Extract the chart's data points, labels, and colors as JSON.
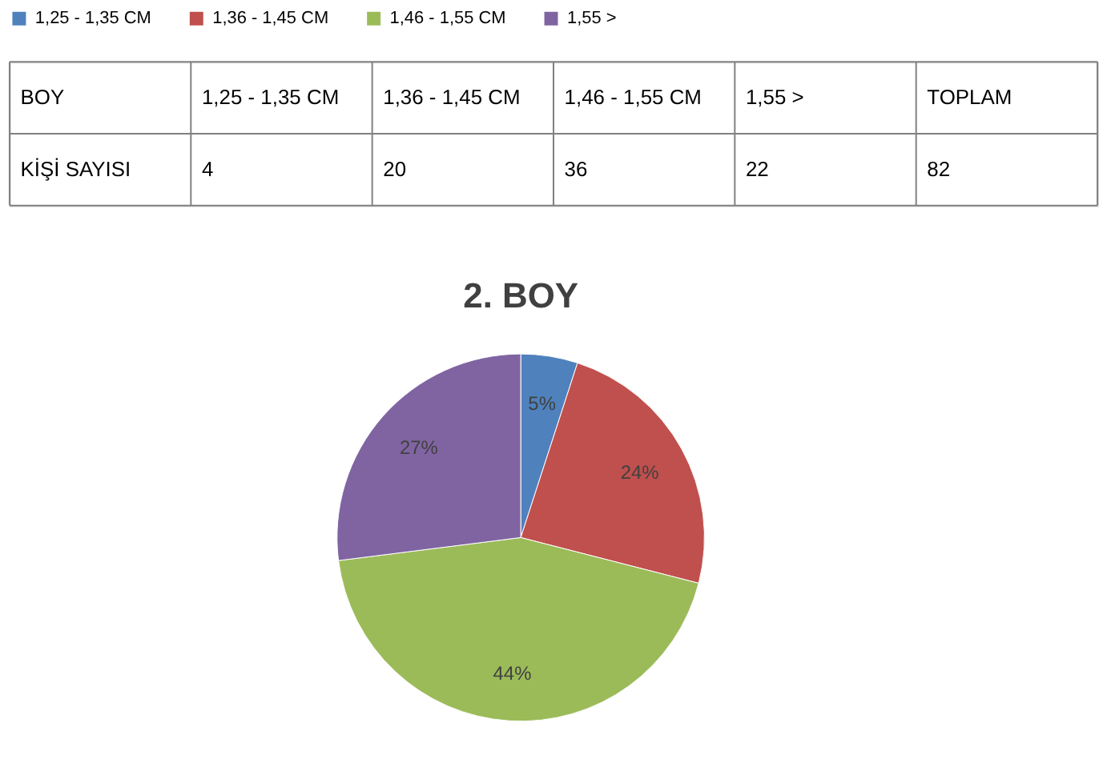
{
  "chart_data": [
    {
      "type": "other",
      "annotations": [
        "BOY",
        "1,25 - 1,35 CM",
        "1,36 - 1,45 CM",
        "1,46 - 1,55 CM",
        "1,55 >",
        "TOPLAM",
        "KİŞİ SAYISI",
        "4",
        "20",
        "36",
        "22",
        "82"
      ]
    },
    {
      "type": "pie",
      "title": "2. BOY",
      "categories": [
        "1,25 - 1,35 CM",
        "1,36 - 1,45 CM",
        "1,46 - 1,55 CM",
        "1,55 >"
      ],
      "values": [
        5,
        24,
        44,
        27
      ],
      "colors": [
        "#4f81bd",
        "#c0504d",
        "#9bbb59",
        "#8064a2"
      ],
      "value_labels": [
        "5%",
        "24%",
        "44%",
        "27%"
      ],
      "legend": "top"
    }
  ]
}
